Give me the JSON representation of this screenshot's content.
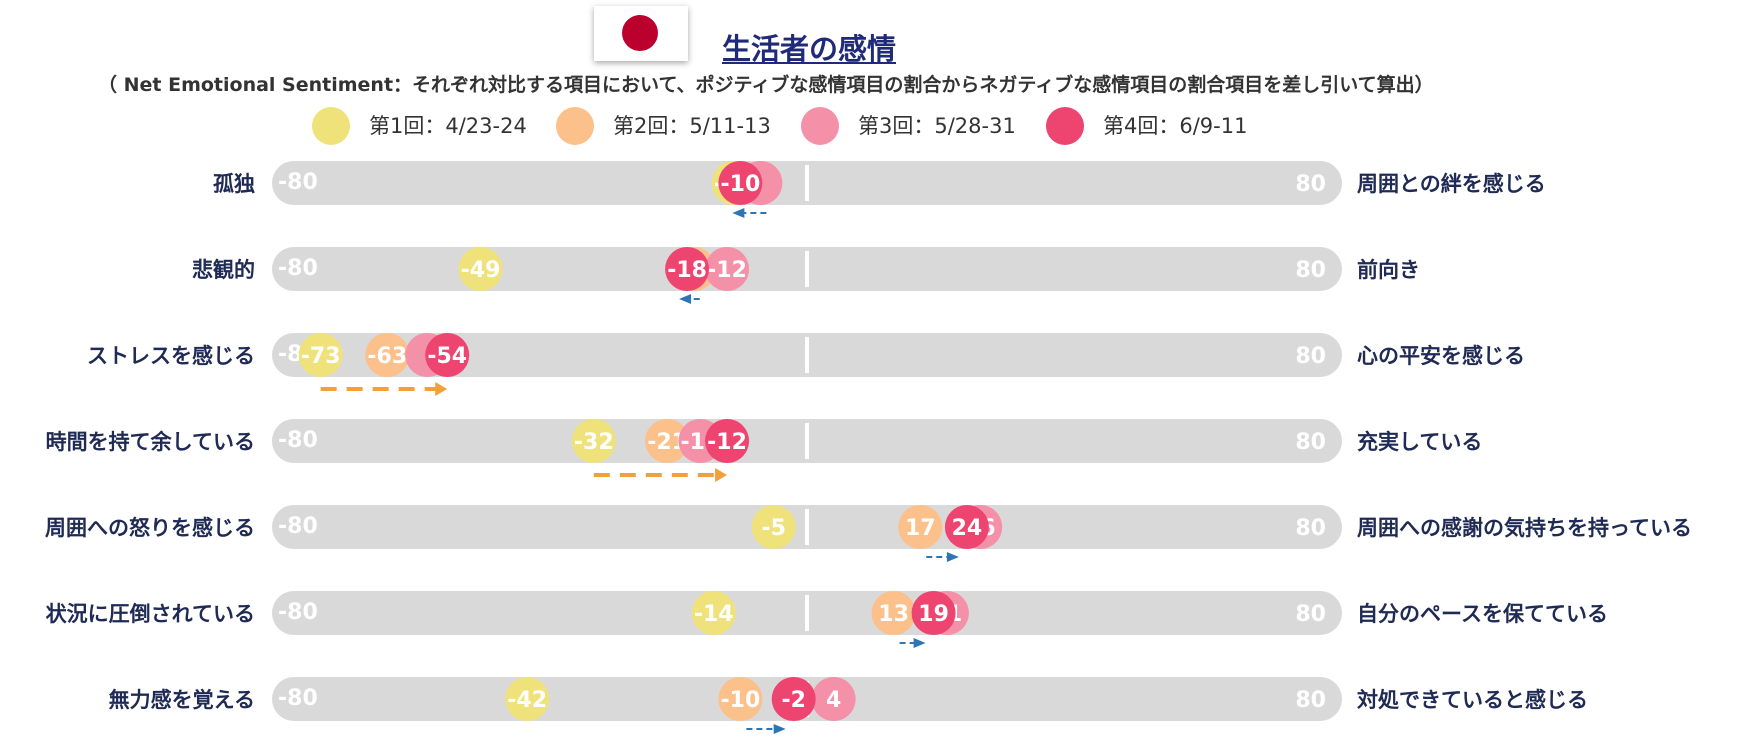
{
  "header": {
    "title": "生活者の感情",
    "subtitle": "（ Net Emotional Sentiment：それぞれ対比する項目において、ポジティブな感情項目の割合からネガティブな感情項目の割合項目を差し引いて算出）",
    "flag_icon": "japan-flag-icon"
  },
  "chart_data": {
    "type": "scatter",
    "title": "生活者の感情",
    "xlim": [
      -80,
      80
    ],
    "axis_min_label": "-80",
    "axis_max_label": "80",
    "legend_position": "top",
    "series": [
      {
        "name": "第1回：4/23-24",
        "color": "#F0E27A"
      },
      {
        "name": "第2回：5/11-13",
        "color": "#FCC08A"
      },
      {
        "name": "第3回：5/28-31",
        "color": "#F490A8"
      },
      {
        "name": "第4回：6/9-11",
        "color": "#EE4470"
      }
    ],
    "rows": [
      {
        "left": "孤独",
        "right": "周囲との絆を感じる",
        "values": [
          -11,
          -7,
          -7,
          -10
        ],
        "shown": [
          true,
          true,
          false,
          true
        ],
        "arrow": "blue-left"
      },
      {
        "left": "悲観的",
        "right": "前向き",
        "values": [
          -49,
          -17,
          -12,
          -18
        ],
        "shown": [
          true,
          true,
          true,
          true
        ],
        "arrow": "blue-left"
      },
      {
        "left": "ストレスを感じる",
        "right": "心の平安を感じる",
        "values": [
          -73,
          -63,
          -57,
          -54
        ],
        "shown": [
          true,
          true,
          false,
          true
        ],
        "arrow": "orange-right"
      },
      {
        "left": "時間を持て余している",
        "right": "充実している",
        "values": [
          -32,
          -21,
          -16,
          -12
        ],
        "shown": [
          true,
          true,
          true,
          true
        ],
        "arrow": "orange-right"
      },
      {
        "left": "周囲への怒りを感じる",
        "right": "周囲への感謝の気持ちを持っている",
        "values": [
          -5,
          17,
          26,
          24
        ],
        "shown": [
          true,
          true,
          true,
          true
        ],
        "arrow": "blue-left"
      },
      {
        "left": "状況に圧倒されている",
        "right": "自分のペースを保てている",
        "values": [
          -14,
          13,
          21,
          19
        ],
        "shown": [
          true,
          true,
          true,
          true
        ],
        "arrow": "blue-left"
      },
      {
        "left": "無力感を覚える",
        "right": "対処できていると感じる",
        "values": [
          -42,
          -10,
          4,
          -2
        ],
        "shown": [
          true,
          true,
          true,
          true
        ],
        "arrow": "blue-left"
      }
    ]
  }
}
